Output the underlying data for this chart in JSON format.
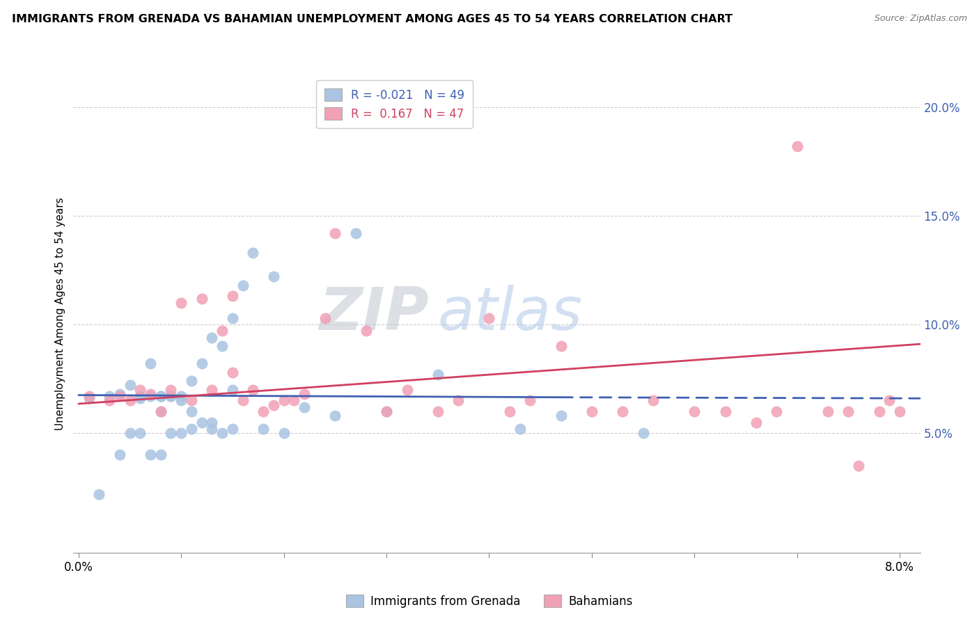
{
  "title": "IMMIGRANTS FROM GRENADA VS BAHAMIAN UNEMPLOYMENT AMONG AGES 45 TO 54 YEARS CORRELATION CHART",
  "source": "Source: ZipAtlas.com",
  "ylabel": "Unemployment Among Ages 45 to 54 years",
  "xlim": [
    -0.0005,
    0.082
  ],
  "ylim": [
    -0.005,
    0.215
  ],
  "color1": "#aac4e2",
  "color2": "#f2a0b5",
  "line_color1": "#4060b0",
  "line_color2": "#d04060",
  "legend_label1": "Immigrants from Grenada",
  "legend_label2": "Bahamians",
  "r1": -0.021,
  "n1": 49,
  "r2": 0.167,
  "n2": 47,
  "watermark": "ZIPatlas",
  "background_color": "#ffffff",
  "grid_color": "#c8c8c8",
  "scatter1_x": [
    0.001,
    0.002,
    0.003,
    0.004,
    0.004,
    0.005,
    0.005,
    0.006,
    0.006,
    0.006,
    0.007,
    0.007,
    0.007,
    0.008,
    0.008,
    0.008,
    0.008,
    0.009,
    0.009,
    0.009,
    0.01,
    0.01,
    0.01,
    0.011,
    0.011,
    0.011,
    0.012,
    0.012,
    0.013,
    0.013,
    0.013,
    0.014,
    0.014,
    0.015,
    0.015,
    0.015,
    0.016,
    0.017,
    0.018,
    0.019,
    0.02,
    0.022,
    0.025,
    0.027,
    0.03,
    0.035,
    0.043,
    0.047,
    0.055
  ],
  "scatter1_y": [
    0.066,
    0.022,
    0.067,
    0.04,
    0.068,
    0.05,
    0.072,
    0.05,
    0.067,
    0.066,
    0.04,
    0.067,
    0.082,
    0.04,
    0.06,
    0.067,
    0.067,
    0.05,
    0.067,
    0.067,
    0.05,
    0.065,
    0.067,
    0.052,
    0.06,
    0.074,
    0.055,
    0.082,
    0.052,
    0.055,
    0.094,
    0.05,
    0.09,
    0.052,
    0.07,
    0.103,
    0.118,
    0.133,
    0.052,
    0.122,
    0.05,
    0.062,
    0.058,
    0.142,
    0.06,
    0.077,
    0.052,
    0.058,
    0.05
  ],
  "scatter2_x": [
    0.001,
    0.003,
    0.004,
    0.005,
    0.006,
    0.007,
    0.008,
    0.009,
    0.01,
    0.011,
    0.012,
    0.013,
    0.014,
    0.015,
    0.015,
    0.016,
    0.017,
    0.018,
    0.019,
    0.02,
    0.021,
    0.022,
    0.024,
    0.025,
    0.028,
    0.03,
    0.032,
    0.035,
    0.037,
    0.04,
    0.042,
    0.044,
    0.047,
    0.05,
    0.053,
    0.056,
    0.06,
    0.063,
    0.066,
    0.068,
    0.07,
    0.073,
    0.075,
    0.076,
    0.078,
    0.079,
    0.08
  ],
  "scatter2_y": [
    0.067,
    0.065,
    0.067,
    0.065,
    0.07,
    0.068,
    0.06,
    0.07,
    0.11,
    0.065,
    0.112,
    0.07,
    0.097,
    0.078,
    0.113,
    0.065,
    0.07,
    0.06,
    0.063,
    0.065,
    0.065,
    0.068,
    0.103,
    0.142,
    0.097,
    0.06,
    0.07,
    0.06,
    0.065,
    0.103,
    0.06,
    0.065,
    0.09,
    0.06,
    0.06,
    0.065,
    0.06,
    0.06,
    0.055,
    0.06,
    0.182,
    0.06,
    0.06,
    0.035,
    0.06,
    0.065,
    0.06
  ],
  "trend1_x0": 0.0,
  "trend1_y0": 0.0675,
  "trend1_x1_solid": 0.047,
  "trend1_y1_solid": 0.0665,
  "trend1_x1_dash": 0.082,
  "trend1_y1_dash": 0.066,
  "trend2_x0": 0.0,
  "trend2_y0": 0.0635,
  "trend2_x1": 0.082,
  "trend2_y1": 0.091
}
